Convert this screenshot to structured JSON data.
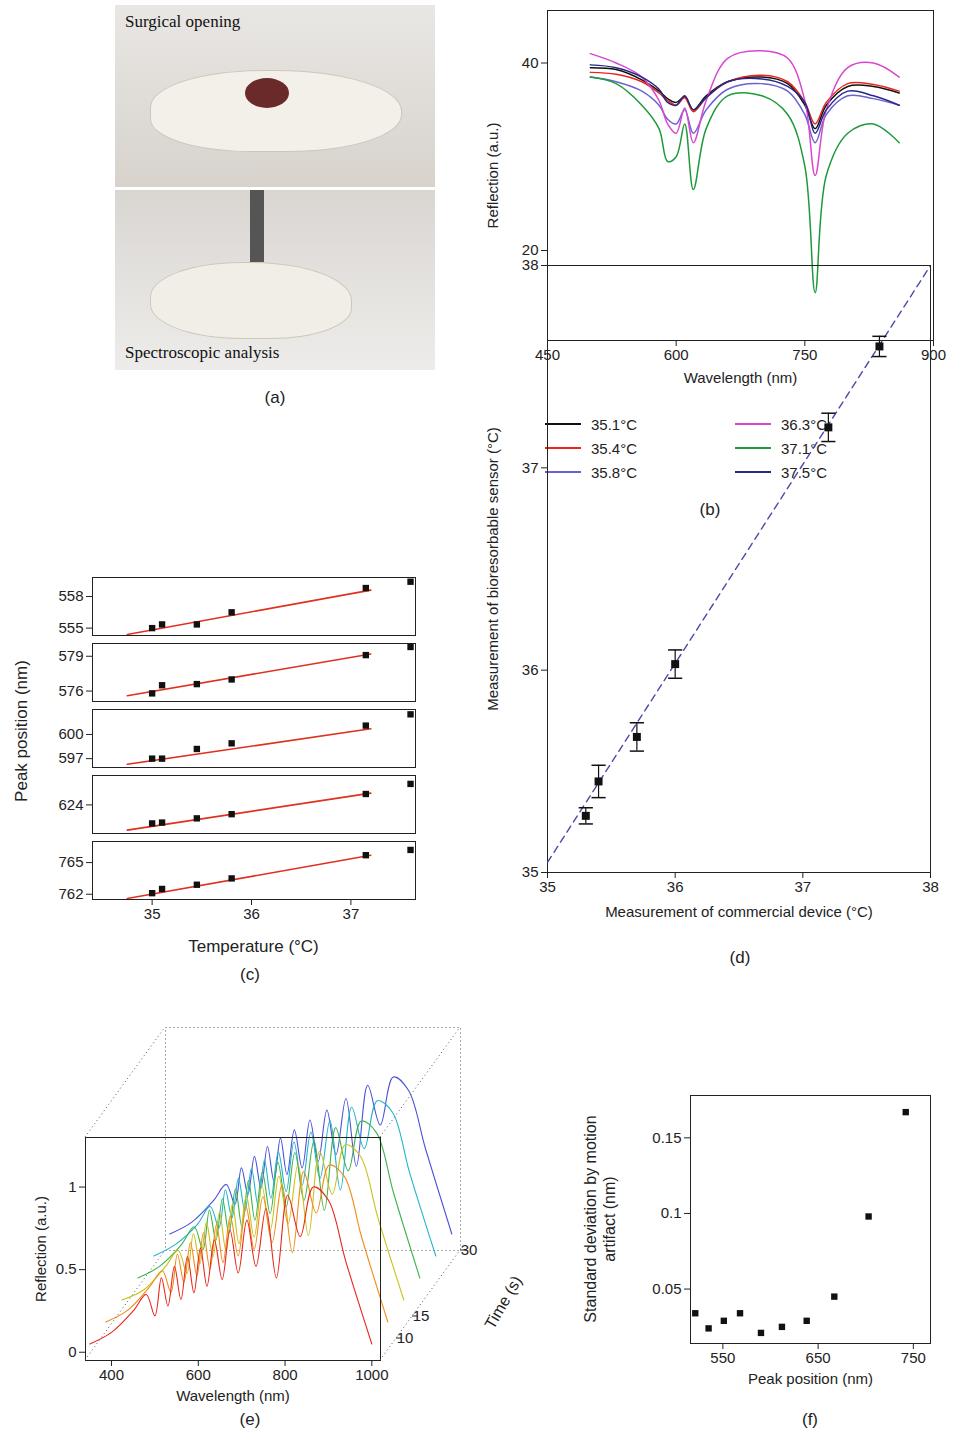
{
  "chart_data": [
    {
      "type": "image",
      "panel": "(a)",
      "annotations": [
        "Surgical opening",
        "Spectroscopic analysis"
      ]
    },
    {
      "type": "line",
      "panel": "(b)",
      "x_label": "Wavelength (nm)",
      "y_label": "Reflection (a.u.)",
      "xlim": [
        450,
        900
      ],
      "xticks": [
        450,
        600,
        750,
        900
      ],
      "ylim": [
        10.4,
        45.6
      ],
      "yticks": [
        20,
        40
      ],
      "legend": "bottom",
      "x": [
        500,
        530,
        560,
        580,
        590,
        600,
        610,
        620,
        635,
        660,
        700,
        730,
        750,
        762,
        775,
        800,
        830,
        860
      ],
      "series": [
        {
          "name": "35.1°C",
          "color": "#111111",
          "values": [
            39.5,
            39.3,
            38.2,
            37,
            36.2,
            35.8,
            36.4,
            35,
            36.5,
            38,
            38.5,
            37.8,
            35.5,
            33,
            35.5,
            37.5,
            37.5,
            36.8
          ]
        },
        {
          "name": "35.4°C",
          "color": "#e8261c",
          "values": [
            39,
            38.8,
            38,
            36.8,
            36,
            35.5,
            36.3,
            34.8,
            36.3,
            38,
            38.7,
            38,
            35.8,
            33.5,
            35.8,
            37.8,
            37.7,
            37
          ]
        },
        {
          "name": "35.8°C",
          "color": "#6a62d0",
          "values": [
            38.5,
            38,
            37,
            35.5,
            34,
            33.5,
            35,
            32.5,
            35,
            37.2,
            37.8,
            37,
            34.5,
            31.5,
            34.5,
            36.5,
            36.2,
            35.5
          ]
        },
        {
          "name": "36.3°C",
          "color": "#d648cf",
          "values": [
            41,
            40,
            38.5,
            36,
            33.5,
            32.5,
            35.2,
            31.5,
            36,
            40.5,
            41.3,
            40.5,
            36,
            28,
            35,
            39.5,
            40,
            38.5
          ]
        },
        {
          "name": "37.1°C",
          "color": "#1f9a3a",
          "values": [
            38.5,
            37.8,
            35.5,
            33,
            29.5,
            30,
            33.5,
            26.5,
            33,
            36.5,
            36.5,
            34.5,
            29,
            15.5,
            28,
            32.5,
            33.5,
            31.5
          ]
        },
        {
          "name": "37.5°C",
          "color": "#27288a",
          "values": [
            39.8,
            39.5,
            38.5,
            37.2,
            35.8,
            35.5,
            36.5,
            35,
            36.3,
            38,
            38.3,
            37.5,
            35.8,
            32.5,
            35,
            37,
            36.5,
            35.5
          ]
        }
      ]
    },
    {
      "type": "scatter",
      "panel": "(c)",
      "x_label": "Temperature (°C)",
      "y_label": "Peak position (nm)",
      "xlim": [
        34.4,
        37.65
      ],
      "xticks": [
        35,
        36,
        37
      ],
      "marker": "square",
      "color": "#111111",
      "fit_color": "#e0301e",
      "x": [
        35.0,
        35.1,
        35.45,
        35.8,
        37.15,
        37.6
      ],
      "subplots": [
        {
          "ylim": [
            554.3,
            559.8
          ],
          "yticks": [
            555,
            558
          ],
          "values": [
            555.0,
            555.35,
            555.35,
            556.5,
            558.8,
            559.4
          ],
          "fit": {
            "x": [
              34.75,
              37.2
            ],
            "y": [
              554.4,
              558.6
            ]
          }
        },
        {
          "ylim": [
            575.1,
            580.1
          ],
          "yticks": [
            576,
            579
          ],
          "values": [
            575.8,
            576.5,
            576.6,
            577.0,
            579.1,
            579.8
          ],
          "fit": {
            "x": [
              34.75,
              37.2
            ],
            "y": [
              575.6,
              579.2
            ]
          }
        },
        {
          "ylim": [
            595.9,
            603.1
          ],
          "yticks": [
            597,
            600
          ],
          "values": [
            597.0,
            597.0,
            598.2,
            598.9,
            601.1,
            602.5
          ],
          "fit": {
            "x": [
              34.75,
              37.2
            ],
            "y": [
              596.3,
              600.7
            ]
          }
        },
        {
          "ylim": [
            620.6,
            627.5
          ],
          "yticks": [
            624
          ],
          "values": [
            621.8,
            621.9,
            622.4,
            622.9,
            625.3,
            626.5
          ],
          "fit": {
            "x": [
              34.75,
              37.2
            ],
            "y": [
              621.0,
              625.4
            ]
          }
        },
        {
          "ylim": [
            761.5,
            767
          ],
          "yticks": [
            762,
            765
          ],
          "values": [
            762.1,
            762.5,
            762.9,
            763.5,
            765.7,
            766.2
          ],
          "fit": {
            "x": [
              34.75,
              37.2
            ],
            "y": [
              761.6,
              765.7
            ]
          }
        }
      ]
    },
    {
      "type": "scatter",
      "panel": "(d)",
      "x_label": "Measurement of commercial device (°C)",
      "y_label": "Measurement of bioresorbable sensor (°C)",
      "xlim": [
        35,
        38
      ],
      "xticks": [
        35,
        36,
        37,
        38
      ],
      "ylim": [
        35,
        38
      ],
      "yticks": [
        35,
        36,
        37,
        38
      ],
      "marker": "square",
      "color": "#111111",
      "x": [
        35.3,
        35.4,
        35.7,
        36.0,
        37.2,
        37.6
      ],
      "values": [
        35.28,
        35.45,
        35.67,
        36.03,
        37.2,
        37.6
      ],
      "errors": [
        0.04,
        0.08,
        0.07,
        0.07,
        0.07,
        0.05
      ],
      "fit": {
        "x": [
          35,
          38
        ],
        "y": [
          35.05,
          38
        ],
        "color": "#4a4aa8",
        "line_style": "dashed"
      }
    },
    {
      "type": "waterfall",
      "panel": "(e)",
      "x_label": "Wavelength (nm)",
      "y_label": "Reflection (a.u.)",
      "z_label": "Time (s)",
      "xlim": [
        340,
        1020
      ],
      "xticks": [
        400,
        600,
        800,
        1000
      ],
      "ylim": [
        -0.05,
        1.3
      ],
      "yticks": [
        0,
        0.5,
        1
      ],
      "zlim": [
        5,
        30
      ],
      "zticks": [
        10,
        15,
        30
      ],
      "x": [
        350,
        400,
        450,
        480,
        500,
        515,
        530,
        545,
        560,
        575,
        590,
        605,
        620,
        637,
        655,
        673,
        692,
        712,
        733,
        756,
        780,
        806,
        835,
        865,
        900,
        940,
        1000
      ],
      "series": [
        {
          "time": 5,
          "color": "#e8261c",
          "values": [
            0.05,
            0.12,
            0.25,
            0.35,
            0.22,
            0.45,
            0.28,
            0.52,
            0.32,
            0.58,
            0.36,
            0.63,
            0.4,
            0.68,
            0.44,
            0.74,
            0.48,
            0.8,
            0.52,
            0.87,
            0.45,
            0.95,
            0.7,
            1.0,
            0.92,
            0.55,
            0.05
          ]
        },
        {
          "time": 10,
          "color": "#f28a1a",
          "values": [
            0.05,
            0.12,
            0.26,
            0.36,
            0.23,
            0.46,
            0.29,
            0.53,
            0.33,
            0.59,
            0.37,
            0.64,
            0.41,
            0.69,
            0.45,
            0.75,
            0.49,
            0.81,
            0.53,
            0.88,
            0.47,
            0.96,
            0.71,
            1.0,
            0.93,
            0.56,
            0.05
          ]
        },
        {
          "time": 15,
          "color": "#c9c21a",
          "values": [
            0.05,
            0.11,
            0.25,
            0.35,
            0.21,
            0.45,
            0.27,
            0.52,
            0.31,
            0.58,
            0.35,
            0.63,
            0.39,
            0.68,
            0.43,
            0.74,
            0.47,
            0.8,
            0.51,
            0.87,
            0.44,
            0.95,
            0.69,
            0.99,
            0.92,
            0.55,
            0.05
          ]
        },
        {
          "time": 20,
          "color": "#3cb34a",
          "values": [
            0.05,
            0.12,
            0.25,
            0.36,
            0.22,
            0.46,
            0.28,
            0.53,
            0.32,
            0.59,
            0.36,
            0.64,
            0.4,
            0.69,
            0.44,
            0.75,
            0.48,
            0.81,
            0.52,
            0.88,
            0.46,
            0.96,
            0.7,
            1.0,
            0.93,
            0.56,
            0.05
          ]
        },
        {
          "time": 25,
          "color": "#21b5c8",
          "values": [
            0.05,
            0.12,
            0.24,
            0.35,
            0.22,
            0.45,
            0.28,
            0.52,
            0.32,
            0.58,
            0.36,
            0.63,
            0.4,
            0.68,
            0.44,
            0.74,
            0.48,
            0.8,
            0.52,
            0.87,
            0.45,
            0.95,
            0.7,
            0.99,
            0.92,
            0.55,
            0.05
          ]
        },
        {
          "time": 30,
          "color": "#4a52d8",
          "values": [
            0.05,
            0.12,
            0.25,
            0.35,
            0.23,
            0.45,
            0.29,
            0.52,
            0.33,
            0.58,
            0.37,
            0.63,
            0.41,
            0.68,
            0.45,
            0.74,
            0.49,
            0.8,
            0.53,
            0.87,
            0.46,
            0.95,
            0.71,
            1.0,
            0.92,
            0.56,
            0.05
          ]
        }
      ]
    },
    {
      "type": "scatter",
      "panel": "(f)",
      "x_label": "Peak position (nm)",
      "y_label": "Standard deviation by motion artifact (nm)",
      "xlim": [
        516,
        768
      ],
      "xticks": [
        550,
        650,
        750
      ],
      "ylim": [
        0.014,
        0.178
      ],
      "yticks": [
        0.05,
        0.1,
        0.15
      ],
      "marker": "square",
      "color": "#111111",
      "x": [
        521,
        535,
        551,
        568,
        590,
        612,
        638,
        667,
        703,
        742
      ],
      "values": [
        0.034,
        0.024,
        0.029,
        0.034,
        0.021,
        0.025,
        0.029,
        0.045,
        0.098,
        0.167
      ]
    }
  ]
}
